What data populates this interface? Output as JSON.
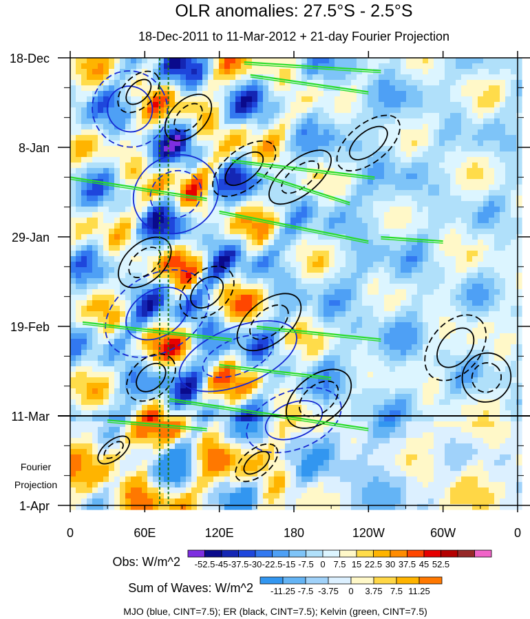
{
  "chart_data": {
    "type": "heatmap",
    "title": "OLR anomalies: 27.5°S - 2.5°S",
    "subtitle": "18-Dec-2011 to 11-Mar-2012 + 21-day Fourier Projection",
    "x_tick_labels": [
      "0",
      "60E",
      "120E",
      "180",
      "120W",
      "60W",
      "0"
    ],
    "x_tick_longitudes_east": [
      0,
      60,
      120,
      180,
      240,
      300,
      360
    ],
    "xlim": [
      0,
      360
    ],
    "y_tick_labels": [
      "18-Dec",
      "8-Jan",
      "29-Jan",
      "19-Feb",
      "11-Mar",
      "1-Apr"
    ],
    "y_tick_days": [
      0,
      21,
      42,
      63,
      84,
      105
    ],
    "ylim_days": [
      0,
      105
    ],
    "projection_boundary_day": 84,
    "projection_label": "Fourier\nProjection",
    "reference_longitudes_east": [
      72,
      79
    ],
    "obs_colorbar": {
      "label": "Obs: W/m^2",
      "ticks": [
        "-52.5",
        "-45",
        "-37.5",
        "-30",
        "-22.5",
        "-15",
        "-7.5",
        "0",
        "7.5",
        "15",
        "22.5",
        "30",
        "37.5",
        "45",
        "52.5"
      ],
      "colors": [
        "#7d2ee0",
        "#0a0a8c",
        "#1426b4",
        "#1e46dc",
        "#3278f0",
        "#4ea0f5",
        "#7ec4f8",
        "#b0e0fa",
        "#dcf5ff",
        "#fff8c8",
        "#ffdc4a",
        "#ffb400",
        "#ff8c00",
        "#ff4600",
        "#e60000",
        "#b40000",
        "#962828",
        "#f064c8"
      ]
    },
    "waves_colorbar": {
      "label": "Sum of Waves: W/m^2",
      "ticks": [
        "-11.25",
        "-7.5",
        "-3.75",
        "0",
        "3.75",
        "7.5",
        "11.25"
      ],
      "colors": [
        "#3296f0",
        "#64b4f5",
        "#a0d2fa",
        "#dcf0ff",
        "#fff8c8",
        "#ffd746",
        "#ffb400",
        "#ff7800"
      ]
    },
    "contour_legend": "MJO (blue, CINT=7.5); ER (black, CINT=7.5); Kelvin (green, CINT=7.5)",
    "contour_colors": {
      "mjo": "#1428d2",
      "er": "#000000",
      "kelvin": "#28dc28",
      "reference": "#1e781e"
    },
    "mjo_contours": [
      {
        "lon": 48,
        "day": 12,
        "lon_span": 60,
        "day_span": 40,
        "slope": 0.6
      },
      {
        "lon": 85,
        "day": 32,
        "lon_span": 70,
        "day_span": 40,
        "slope": 0.5
      },
      {
        "lon": 70,
        "day": 60,
        "lon_span": 90,
        "day_span": 40,
        "slope": 0.6
      },
      {
        "lon": 135,
        "day": 70,
        "lon_span": 100,
        "day_span": 30,
        "slope": 0.4
      },
      {
        "lon": 180,
        "day": 85,
        "lon_span": 80,
        "day_span": 30,
        "slope": 0.4
      }
    ],
    "er_contours": [
      {
        "lon": 55,
        "day": 8,
        "lon_span": 40,
        "day_span": 16,
        "slope": 1.0
      },
      {
        "lon": 95,
        "day": 14,
        "lon_span": 45,
        "day_span": 18,
        "slope": 1.0
      },
      {
        "lon": 140,
        "day": 26,
        "lon_span": 60,
        "day_span": 20,
        "slope": 0.8
      },
      {
        "lon": 185,
        "day": 28,
        "lon_span": 60,
        "day_span": 18,
        "slope": 0.8
      },
      {
        "lon": 240,
        "day": 20,
        "lon_span": 60,
        "day_span": 20,
        "slope": 0.8
      },
      {
        "lon": 60,
        "day": 48,
        "lon_span": 50,
        "day_span": 20,
        "slope": 0.9
      },
      {
        "lon": 110,
        "day": 55,
        "lon_span": 50,
        "day_span": 22,
        "slope": 0.9
      },
      {
        "lon": 160,
        "day": 62,
        "lon_span": 60,
        "day_span": 22,
        "slope": 0.8
      },
      {
        "lon": 310,
        "day": 68,
        "lon_span": 60,
        "day_span": 26,
        "slope": 1.2
      },
      {
        "lon": 335,
        "day": 75,
        "lon_span": 40,
        "day_span": 25,
        "slope": 1.2
      },
      {
        "lon": 65,
        "day": 75,
        "lon_span": 45,
        "day_span": 20,
        "slope": 0.9
      },
      {
        "lon": 200,
        "day": 80,
        "lon_span": 60,
        "day_span": 24,
        "slope": 0.8
      },
      {
        "lon": 150,
        "day": 95,
        "lon_span": 40,
        "day_span": 14,
        "slope": 0.8
      },
      {
        "lon": 35,
        "day": 92,
        "lon_span": 30,
        "day_span": 10,
        "slope": 0.8
      }
    ],
    "kelvin_lines": [
      {
        "lon1": 140,
        "day1": 1,
        "lon2": 250,
        "day2": 3
      },
      {
        "lon1": 145,
        "day1": 4,
        "lon2": 240,
        "day2": 8
      },
      {
        "lon1": 0,
        "day1": 28,
        "lon2": 110,
        "day2": 33
      },
      {
        "lon1": 130,
        "day1": 24,
        "lon2": 245,
        "day2": 28
      },
      {
        "lon1": 150,
        "day1": 27,
        "lon2": 225,
        "day2": 34
      },
      {
        "lon1": 120,
        "day1": 36,
        "lon2": 240,
        "day2": 43
      },
      {
        "lon1": 250,
        "day1": 42,
        "lon2": 300,
        "day2": 43
      },
      {
        "lon1": 10,
        "day1": 62,
        "lon2": 130,
        "day2": 66
      },
      {
        "lon1": 150,
        "day1": 63,
        "lon2": 250,
        "day2": 66
      },
      {
        "lon1": 120,
        "day1": 72,
        "lon2": 210,
        "day2": 75
      },
      {
        "lon1": 80,
        "day1": 80,
        "lon2": 240,
        "day2": 87
      },
      {
        "lon1": 30,
        "day1": 85,
        "lon2": 110,
        "day2": 87
      }
    ]
  }
}
